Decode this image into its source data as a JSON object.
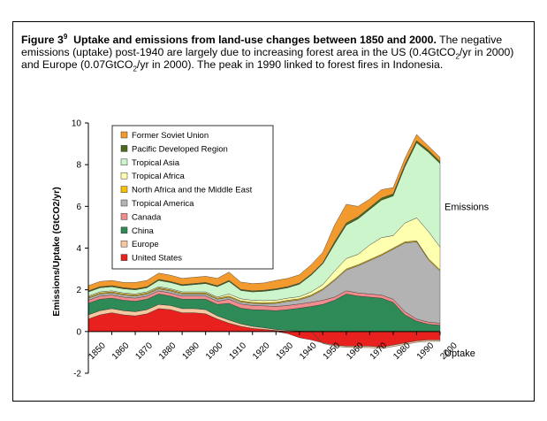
{
  "caption": {
    "label": "Figure 3",
    "label_sup": "9",
    "title": "Uptake and emissions from land-use changes between 1850 and 2000.",
    "text_1": "The negative emissions (uptake) post-1940 are largely due to increasing forest area in the US (0.4GtCO",
    "sub_1": "2",
    "text_2": "/yr in 2000) and Europe (0.07GtCO",
    "sub_2": "2",
    "text_3": "/yr in 2000). The peak in 1990 linked to forest fires in Indonesia."
  },
  "chart_data": {
    "type": "area",
    "stacked": true,
    "title": "",
    "xlabel": "",
    "ylabel": "Emissions/Uptake (GtCO2/yr)",
    "xlim": [
      1850,
      2000
    ],
    "ylim": [
      -2,
      10
    ],
    "x_ticks": [
      "1850",
      "1860",
      "1870",
      "1880",
      "1890",
      "1900",
      "1910",
      "1920",
      "1930",
      "1940",
      "1950",
      "1960",
      "1970",
      "1980",
      "1990",
      "2000"
    ],
    "y_ticks": [
      "-2",
      "0",
      "2",
      "4",
      "6",
      "8",
      "10"
    ],
    "grid": false,
    "legend_position": "top-left",
    "annotations": [
      {
        "text": "Emissions",
        "position": "right"
      },
      {
        "text": "Uptake",
        "position": "bottom-right"
      }
    ],
    "x": [
      1850,
      1855,
      1860,
      1865,
      1870,
      1875,
      1880,
      1885,
      1890,
      1895,
      1900,
      1905,
      1910,
      1915,
      1920,
      1925,
      1930,
      1935,
      1940,
      1945,
      1950,
      1955,
      1960,
      1965,
      1970,
      1975,
      1980,
      1985,
      1990,
      1995,
      2000
    ],
    "series": [
      {
        "name": "United States",
        "color": "#e8201e",
        "values": [
          0.6,
          0.8,
          0.9,
          0.8,
          0.75,
          0.85,
          1.1,
          1.05,
          0.9,
          0.9,
          0.85,
          0.6,
          0.4,
          0.25,
          0.15,
          0.1,
          0.05,
          -0.1,
          -0.3,
          -0.4,
          -0.55,
          -0.65,
          -0.7,
          -0.7,
          -0.7,
          -0.75,
          -0.65,
          -0.55,
          -0.45,
          -0.4,
          -0.4
        ]
      },
      {
        "name": "Europe",
        "color": "#f5c8a0",
        "values": [
          0.2,
          0.2,
          0.2,
          0.2,
          0.2,
          0.2,
          0.2,
          0.2,
          0.2,
          0.2,
          0.2,
          0.15,
          0.15,
          0.12,
          0.1,
          0.08,
          0.05,
          0.05,
          0.02,
          0.0,
          -0.03,
          -0.05,
          -0.06,
          -0.07,
          -0.07,
          -0.07,
          -0.07,
          -0.07,
          -0.07,
          -0.07,
          -0.07
        ]
      },
      {
        "name": "China",
        "color": "#2e8b57",
        "values": [
          0.55,
          0.55,
          0.5,
          0.5,
          0.5,
          0.5,
          0.5,
          0.45,
          0.45,
          0.45,
          0.5,
          0.55,
          0.8,
          0.75,
          0.8,
          0.85,
          0.9,
          1.0,
          1.1,
          1.2,
          1.3,
          1.5,
          1.8,
          1.7,
          1.65,
          1.6,
          1.4,
          0.8,
          0.5,
          0.35,
          0.3
        ]
      },
      {
        "name": "Canada",
        "color": "#f08c8c",
        "values": [
          0.15,
          0.15,
          0.15,
          0.15,
          0.15,
          0.15,
          0.15,
          0.15,
          0.15,
          0.15,
          0.15,
          0.15,
          0.2,
          0.2,
          0.2,
          0.2,
          0.2,
          0.2,
          0.2,
          0.2,
          0.2,
          0.15,
          0.15,
          0.15,
          0.15,
          0.15,
          0.15,
          0.15,
          0.1,
          0.1,
          0.1
        ]
      },
      {
        "name": "Tropical America",
        "color": "#b3b3b3",
        "values": [
          0.1,
          0.1,
          0.1,
          0.1,
          0.1,
          0.1,
          0.1,
          0.1,
          0.1,
          0.1,
          0.1,
          0.1,
          0.1,
          0.1,
          0.1,
          0.1,
          0.15,
          0.2,
          0.2,
          0.3,
          0.5,
          0.8,
          1.0,
          1.3,
          1.6,
          1.9,
          2.4,
          3.3,
          3.7,
          3.0,
          2.5
        ]
      },
      {
        "name": "North Africa and the Middle East",
        "color": "#f5c000",
        "values": [
          0.05,
          0.05,
          0.05,
          0.05,
          0.05,
          0.05,
          0.05,
          0.05,
          0.05,
          0.05,
          0.05,
          0.05,
          0.05,
          0.05,
          0.05,
          0.05,
          0.05,
          0.05,
          0.05,
          0.05,
          0.05,
          0.05,
          0.05,
          0.05,
          0.05,
          0.05,
          0.05,
          0.05,
          0.05,
          0.05,
          0.05
        ]
      },
      {
        "name": "Tropical Africa",
        "color": "#ffffb0",
        "values": [
          0.05,
          0.05,
          0.05,
          0.05,
          0.05,
          0.05,
          0.05,
          0.05,
          0.05,
          0.05,
          0.05,
          0.05,
          0.1,
          0.1,
          0.1,
          0.1,
          0.1,
          0.1,
          0.1,
          0.15,
          0.2,
          0.4,
          0.5,
          0.5,
          0.7,
          0.8,
          0.6,
          0.9,
          1.1,
          1.3,
          1.1
        ]
      },
      {
        "name": "Tropical Asia",
        "color": "#ccf5cc",
        "values": [
          0.2,
          0.2,
          0.2,
          0.2,
          0.2,
          0.2,
          0.3,
          0.3,
          0.3,
          0.35,
          0.4,
          0.5,
          0.6,
          0.4,
          0.4,
          0.45,
          0.5,
          0.5,
          0.6,
          0.8,
          1.0,
          1.3,
          1.6,
          1.7,
          1.7,
          1.8,
          1.9,
          2.7,
          3.6,
          3.8,
          4.0
        ]
      },
      {
        "name": "Pacific Developed Region",
        "color": "#4a6b1a",
        "values": [
          0.05,
          0.05,
          0.05,
          0.05,
          0.05,
          0.05,
          0.05,
          0.05,
          0.05,
          0.05,
          0.05,
          0.05,
          0.05,
          0.05,
          0.05,
          0.05,
          0.05,
          0.05,
          0.05,
          0.05,
          0.05,
          0.1,
          0.1,
          0.1,
          0.1,
          0.1,
          0.1,
          0.1,
          0.1,
          0.1,
          0.1
        ]
      },
      {
        "name": "Former Soviet Union",
        "color": "#f29a2e",
        "values": [
          0.25,
          0.25,
          0.25,
          0.25,
          0.3,
          0.3,
          0.3,
          0.3,
          0.3,
          0.3,
          0.3,
          0.35,
          0.4,
          0.35,
          0.35,
          0.35,
          0.4,
          0.4,
          0.4,
          0.45,
          0.5,
          0.8,
          0.9,
          0.5,
          0.4,
          0.4,
          0.3,
          0.3,
          0.3,
          0.2,
          0.2
        ]
      }
    ]
  }
}
